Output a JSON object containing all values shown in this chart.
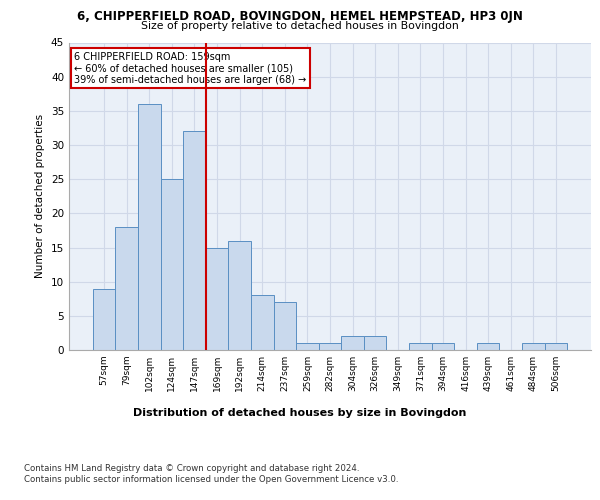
{
  "title": "6, CHIPPERFIELD ROAD, BOVINGDON, HEMEL HEMPSTEAD, HP3 0JN",
  "subtitle": "Size of property relative to detached houses in Bovingdon",
  "xlabel_bottom": "Distribution of detached houses by size in Bovingdon",
  "ylabel": "Number of detached properties",
  "categories": [
    "57sqm",
    "79sqm",
    "102sqm",
    "124sqm",
    "147sqm",
    "169sqm",
    "192sqm",
    "214sqm",
    "237sqm",
    "259sqm",
    "282sqm",
    "304sqm",
    "326sqm",
    "349sqm",
    "371sqm",
    "394sqm",
    "416sqm",
    "439sqm",
    "461sqm",
    "484sqm",
    "506sqm"
  ],
  "values": [
    9,
    18,
    36,
    25,
    32,
    15,
    16,
    8,
    7,
    1,
    1,
    2,
    2,
    0,
    1,
    1,
    0,
    1,
    0,
    1,
    1
  ],
  "bar_color": "#c9d9ed",
  "bar_edge_color": "#5a8fc3",
  "red_line_x": 4.5,
  "annotation_text": "6 CHIPPERFIELD ROAD: 159sqm\n← 60% of detached houses are smaller (105)\n39% of semi-detached houses are larger (68) →",
  "annotation_box_color": "#ffffff",
  "annotation_box_edge_color": "#cc0000",
  "red_line_color": "#cc0000",
  "ylim": [
    0,
    45
  ],
  "yticks": [
    0,
    5,
    10,
    15,
    20,
    25,
    30,
    35,
    40,
    45
  ],
  "grid_color": "#d0d8e8",
  "background_color": "#eaf0f8",
  "footer_line1": "Contains HM Land Registry data © Crown copyright and database right 2024.",
  "footer_line2": "Contains public sector information licensed under the Open Government Licence v3.0."
}
